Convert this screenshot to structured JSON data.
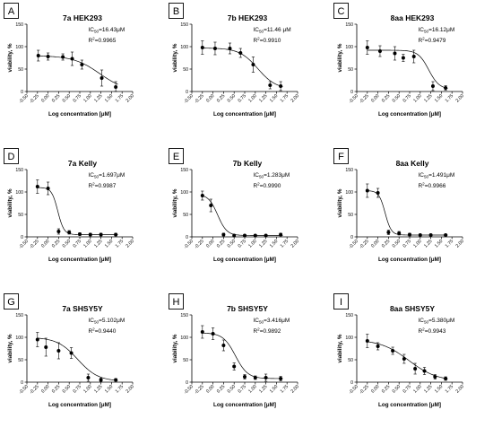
{
  "chart_data": [
    {
      "type": "scatter",
      "panel": "A",
      "title": "7a HEK293",
      "ic50": "16.43μM",
      "r2": "0.9965",
      "xlabel": "Log concentration [μM]",
      "ylabel": "viability, %",
      "xticks": [
        "-0.50",
        "-0.25",
        "0.00",
        "0.25",
        "0.50",
        "0.75",
        "1.00",
        "1.25",
        "1.50",
        "1.75",
        "2.00"
      ],
      "yticks": [
        "0",
        "50",
        "100",
        "150"
      ],
      "xlim": [
        -0.5,
        2.0
      ],
      "ylim": [
        0,
        150
      ],
      "x": [
        -0.23,
        0.0,
        0.35,
        0.57,
        0.8,
        1.27,
        1.6
      ],
      "y": [
        80,
        78,
        77,
        73,
        60,
        30,
        10
      ],
      "err": [
        12,
        8,
        7,
        15,
        10,
        18,
        12
      ],
      "curve": {
        "top": 80,
        "bottom": 0,
        "logec50": 1.22,
        "hill": 1.4
      }
    },
    {
      "type": "scatter",
      "panel": "B",
      "title": "7b HEK293",
      "ic50": "11.46 μM",
      "r2": "0.9910",
      "xlabel": "Log concentration [μM]",
      "ylabel": "viability, %",
      "xticks": [
        "-0.50",
        "-0.25",
        "0.00",
        "0.25",
        "0.50",
        "0.75",
        "1.00",
        "1.25",
        "1.50",
        "1.75",
        "2.00"
      ],
      "yticks": [
        "0",
        "50",
        "100",
        "150"
      ],
      "xlim": [
        -0.5,
        2.0
      ],
      "ylim": [
        0,
        150
      ],
      "x": [
        -0.25,
        0.05,
        0.4,
        0.65,
        0.95,
        1.35,
        1.6
      ],
      "y": [
        98,
        96,
        96,
        86,
        60,
        14,
        12
      ],
      "err": [
        15,
        14,
        12,
        10,
        17,
        8,
        10
      ],
      "curve": {
        "top": 97,
        "bottom": 5,
        "logec50": 1.06,
        "hill": 2.0
      }
    },
    {
      "type": "scatter",
      "panel": "C",
      "title": "8aa HEK293",
      "ic50": "16.12μM",
      "r2": "0.9479",
      "xlabel": "Log concentration [μM]",
      "ylabel": "viability, %",
      "xticks": [
        "-0.50",
        "-0.25",
        "0.00",
        "0.25",
        "0.50",
        "0.75",
        "1.00",
        "1.25",
        "1.50",
        "1.75",
        "2.00"
      ],
      "yticks": [
        "0",
        "50",
        "100",
        "150"
      ],
      "xlim": [
        -0.5,
        2.0
      ],
      "ylim": [
        0,
        150
      ],
      "x": [
        -0.25,
        0.05,
        0.4,
        0.6,
        0.85,
        1.3,
        1.6
      ],
      "y": [
        98,
        90,
        85,
        75,
        78,
        12,
        8
      ],
      "err": [
        15,
        12,
        15,
        8,
        14,
        10,
        5
      ],
      "curve": {
        "top": 92,
        "bottom": 5,
        "logec50": 1.2,
        "hill": 3.5
      }
    },
    {
      "type": "scatter",
      "panel": "D",
      "title": "7a Kelly",
      "ic50": "1.697μM",
      "r2": "0.9987",
      "xlabel": "Log concentration [μM]",
      "ylabel": "viability, %",
      "xticks": [
        "-0.50",
        "-0.25",
        "0.00",
        "0.25",
        "0.50",
        "0.75",
        "1.00",
        "1.25",
        "1.50",
        "1.75",
        "2.00"
      ],
      "yticks": [
        "0",
        "50",
        "100",
        "150"
      ],
      "xlim": [
        -0.5,
        2.0
      ],
      "ylim": [
        0,
        150
      ],
      "x": [
        -0.25,
        0.0,
        0.25,
        0.5,
        0.75,
        1.0,
        1.25,
        1.6
      ],
      "y": [
        112,
        108,
        12,
        10,
        6,
        5,
        5,
        5
      ],
      "err": [
        15,
        14,
        6,
        4,
        3,
        3,
        3,
        3
      ],
      "curve": {
        "top": 110,
        "bottom": 5,
        "logec50": 0.23,
        "hill": 6.0
      }
    },
    {
      "type": "scatter",
      "panel": "E",
      "title": "7b Kelly",
      "ic50": "1.283μM",
      "r2": "0.9990",
      "xlabel": "Log concentration [μM]",
      "ylabel": "viability, %",
      "xticks": [
        "-0.50",
        "-0.25",
        "0.00",
        "0.25",
        "0.50",
        "0.75",
        "1.00",
        "1.25",
        "1.50",
        "1.75",
        "2.00"
      ],
      "yticks": [
        "0",
        "50",
        "100",
        "150"
      ],
      "xlim": [
        -0.5,
        2.0
      ],
      "ylim": [
        0,
        150
      ],
      "x": [
        -0.25,
        -0.05,
        0.25,
        0.5,
        0.75,
        1.0,
        1.25,
        1.6
      ],
      "y": [
        92,
        70,
        5,
        3,
        3,
        3,
        3,
        5
      ],
      "err": [
        10,
        14,
        3,
        2,
        2,
        2,
        2,
        3
      ],
      "curve": {
        "top": 95,
        "bottom": 3,
        "logec50": 0.11,
        "hill": 4.0
      }
    },
    {
      "type": "scatter",
      "panel": "F",
      "title": "8aa Kelly",
      "ic50": "1.491μM",
      "r2": "0.9966",
      "xlabel": "Log concentration [μM]",
      "ylabel": "viability, %",
      "xticks": [
        "-0.50",
        "-0.25",
        "0.00",
        "0.25",
        "0.50",
        "0.75",
        "1.00",
        "1.25",
        "1.50",
        "1.75",
        "2.00"
      ],
      "yticks": [
        "0",
        "50",
        "100",
        "150"
      ],
      "xlim": [
        -0.5,
        2.0
      ],
      "ylim": [
        0,
        150
      ],
      "x": [
        -0.25,
        0.0,
        0.25,
        0.5,
        0.75,
        1.0,
        1.25,
        1.6
      ],
      "y": [
        103,
        98,
        10,
        8,
        5,
        4,
        4,
        4
      ],
      "err": [
        15,
        10,
        5,
        4,
        3,
        2,
        2,
        2
      ],
      "curve": {
        "top": 103,
        "bottom": 4,
        "logec50": 0.17,
        "hill": 6.0
      }
    },
    {
      "type": "scatter",
      "panel": "G",
      "title": "7a SHSY5Y",
      "ic50": "5.102μM",
      "r2": "0.9440",
      "xlabel": "Log concentration [μM]",
      "ylabel": "viability, %",
      "xticks": [
        "-0.50",
        "-0.25",
        "0.00",
        "0.25",
        "0.50",
        "0.75",
        "1.00",
        "1.25",
        "1.50",
        "1.75",
        "2.00"
      ],
      "yticks": [
        "0",
        "50",
        "100",
        "150"
      ],
      "xlim": [
        -0.5,
        2.0
      ],
      "ylim": [
        0,
        150
      ],
      "x": [
        -0.25,
        -0.05,
        0.25,
        0.55,
        0.95,
        1.25,
        1.6
      ],
      "y": [
        95,
        78,
        70,
        65,
        10,
        5,
        5
      ],
      "err": [
        16,
        20,
        18,
        12,
        8,
        4,
        3
      ],
      "curve": {
        "top": 100,
        "bottom": 2,
        "logec50": 0.7,
        "hill": 1.8
      }
    },
    {
      "type": "scatter",
      "panel": "H",
      "title": "7b SHSY5Y",
      "ic50": "3.416μM",
      "r2": "0.9892",
      "xlabel": "Log concentration [μM]",
      "ylabel": "viability, %",
      "xticks": [
        "-0.50",
        "-0.25",
        "0.00",
        "0.25",
        "0.50",
        "0.75",
        "1.00",
        "1.25",
        "1.50",
        "1.75",
        "2.00"
      ],
      "yticks": [
        "0",
        "50",
        "100",
        "150"
      ],
      "xlim": [
        -0.5,
        2.0
      ],
      "ylim": [
        0,
        150
      ],
      "x": [
        -0.25,
        0.0,
        0.25,
        0.5,
        0.75,
        1.0,
        1.25,
        1.6
      ],
      "y": [
        112,
        108,
        82,
        35,
        12,
        10,
        10,
        8
      ],
      "err": [
        14,
        13,
        12,
        8,
        5,
        4,
        8,
        5
      ],
      "curve": {
        "top": 110,
        "bottom": 8,
        "logec50": 0.53,
        "hill": 3.0
      }
    },
    {
      "type": "scatter",
      "panel": "I",
      "title": "8aa SHSY5Y",
      "ic50": "5.380μM",
      "r2": "0.9943",
      "xlabel": "Log concentration [μM]",
      "ylabel": "viability, %",
      "xticks": [
        "-0.50",
        "-0.25",
        "0.00",
        "0.25",
        "0.50",
        "0.75",
        "1.00",
        "1.25",
        "1.50",
        "1.75",
        "2.00"
      ],
      "yticks": [
        "0",
        "50",
        "100",
        "150"
      ],
      "xlim": [
        -0.5,
        2.0
      ],
      "ylim": [
        0,
        150
      ],
      "x": [
        -0.25,
        0.0,
        0.35,
        0.62,
        0.88,
        1.1,
        1.35,
        1.6
      ],
      "y": [
        92,
        80,
        70,
        52,
        30,
        25,
        12,
        8
      ],
      "err": [
        15,
        8,
        8,
        10,
        12,
        8,
        5,
        4
      ],
      "curve": {
        "top": 95,
        "bottom": 2,
        "logec50": 0.73,
        "hill": 1.3
      }
    }
  ]
}
